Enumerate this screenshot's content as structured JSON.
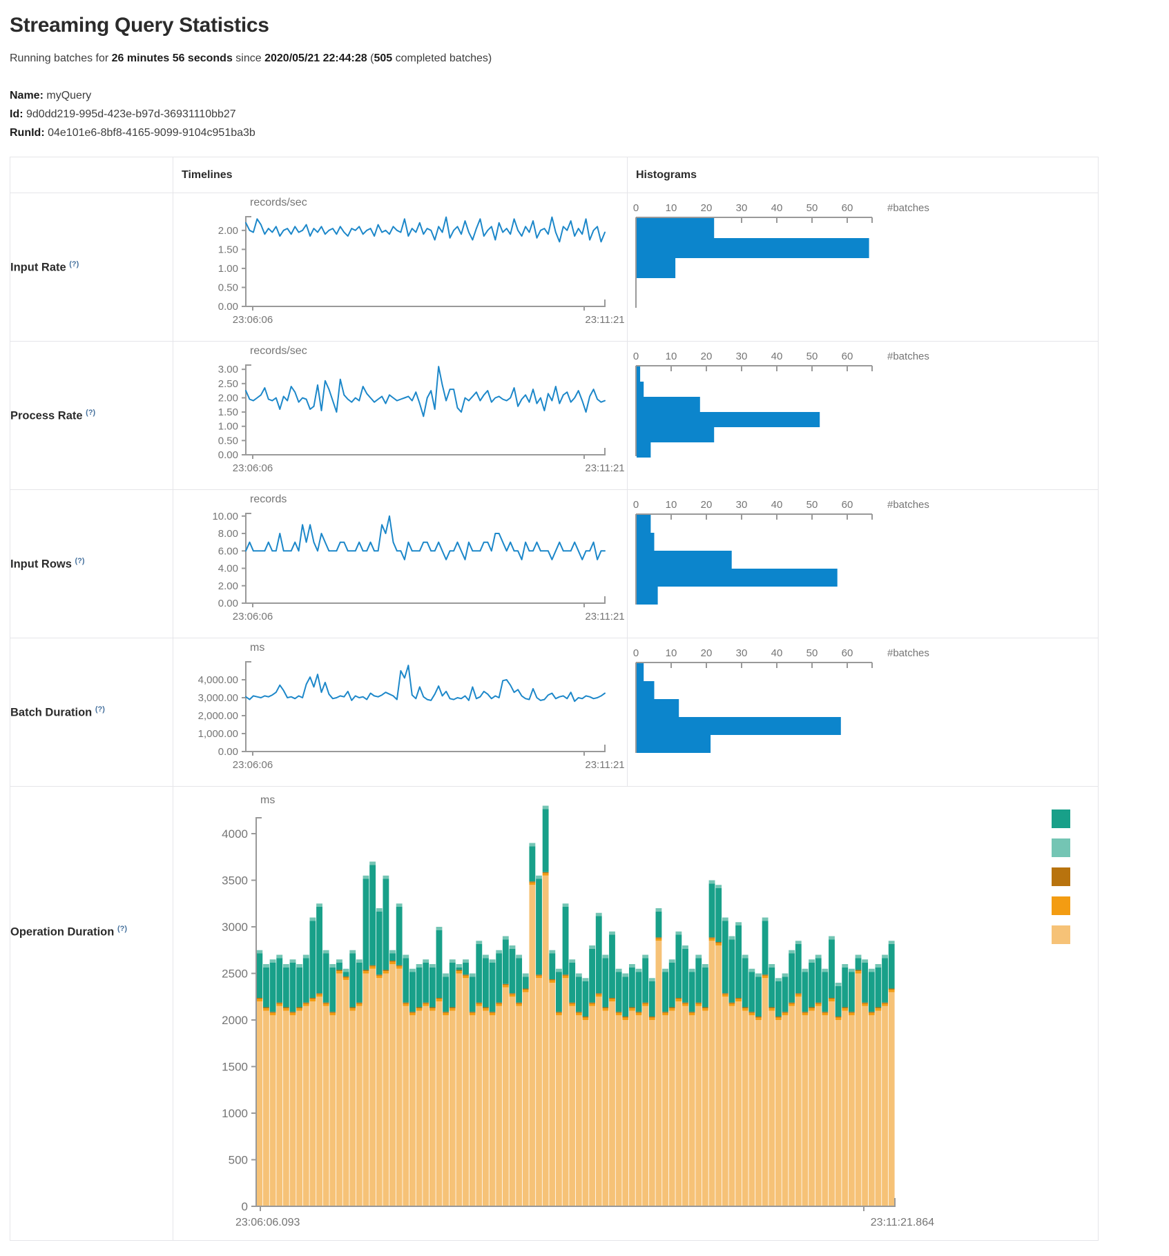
{
  "page": {
    "title": "Streaming Query Statistics",
    "subtitle": {
      "prefix": "Running batches for",
      "duration": "26 minutes 56 seconds",
      "mid": "since",
      "start_time": "2020/05/21 22:44:28",
      "open_paren": "(",
      "batch_count": "505",
      "suffix": "completed batches)"
    },
    "meta": {
      "name_label": "Name:",
      "name_value": "myQuery",
      "id_label": "Id:",
      "id_value": "9d0dd219-995d-423e-b97d-36931110bb27",
      "runid_label": "RunId:",
      "runid_value": "04e101e6-8bf8-4165-9099-9104c951ba3b"
    }
  },
  "table": {
    "header": {
      "timelines": "Timelines",
      "histograms": "Histograms"
    },
    "row_labels": [
      {
        "label": "Input Rate",
        "help": "(?)"
      },
      {
        "label": "Process Rate",
        "help": "(?)"
      },
      {
        "label": "Input Rows",
        "help": "(?)"
      },
      {
        "label": "Batch Duration",
        "help": "(?)"
      },
      {
        "label": "Operation Duration",
        "help": "(?)"
      }
    ]
  },
  "colors": {
    "line_blue": "#1c87c9",
    "hist_blue": "#0c85cc",
    "axis": "#999999",
    "tick_text": "#757575",
    "op_teal": "#18a089",
    "op_light_teal": "#74c5b4",
    "op_dark_orange": "#b8730e",
    "op_orange": "#f39c12",
    "op_tan": "#f6c277"
  },
  "chart_data": {
    "histogram_axis": {
      "ticks": [
        0,
        10,
        20,
        30,
        40,
        50,
        60
      ],
      "unit_label": "#batches",
      "max_value": 67
    },
    "rows": [
      {
        "name": "input-rate",
        "timeline": {
          "type": "line",
          "ylabel": "records/sec",
          "yticks": [
            "0.00",
            "0.50",
            "1.00",
            "1.50",
            "2.00"
          ],
          "ytick_values": [
            0,
            0.5,
            1,
            1.5,
            2
          ],
          "y_axis_top_value": 2.36,
          "x_start_label": "23:06:06",
          "x_end_label": "23:11:21",
          "values": [
            2.2,
            2.0,
            1.95,
            2.3,
            2.15,
            1.9,
            2.05,
            1.95,
            2.1,
            1.85,
            2.0,
            2.05,
            1.9,
            2.1,
            1.95,
            2.0,
            2.15,
            1.85,
            2.05,
            1.95,
            2.1,
            1.9,
            2.0,
            2.05,
            1.9,
            2.1,
            1.95,
            1.85,
            2.05,
            2.0,
            2.1,
            1.9,
            2.0,
            2.05,
            1.85,
            2.15,
            1.95,
            2.0,
            1.9,
            2.1,
            2.0,
            1.95,
            2.3,
            1.85,
            2.05,
            1.95,
            2.2,
            1.9,
            2.05,
            2.0,
            1.75,
            2.1,
            1.95,
            2.35,
            1.8,
            2.0,
            2.1,
            1.9,
            2.25,
            1.95,
            1.75,
            2.05,
            2.3,
            1.85,
            2.0,
            2.1,
            1.75,
            2.2,
            1.95,
            2.05,
            1.9,
            2.3,
            2.0,
            1.85,
            2.1,
            1.95,
            2.25,
            1.8,
            2.0,
            2.05,
            1.9,
            2.35,
            1.95,
            1.7,
            2.1,
            2.0,
            2.25,
            1.85,
            2.05,
            1.9,
            2.3,
            1.75,
            2.0,
            2.1,
            1.7,
            1.95
          ]
        },
        "histogram": {
          "type": "bar-horizontal",
          "values": [
            22,
            66,
            11
          ]
        }
      },
      {
        "name": "process-rate",
        "timeline": {
          "type": "line",
          "ylabel": "records/sec",
          "yticks": [
            "0.00",
            "0.50",
            "1.00",
            "1.50",
            "2.00",
            "2.50",
            "3.00"
          ],
          "ytick_values": [
            0,
            0.5,
            1,
            1.5,
            2,
            2.5,
            3
          ],
          "y_axis_top_value": 3.15,
          "x_start_label": "23:06:06",
          "x_end_label": "23:11:21",
          "values": [
            2.25,
            1.95,
            1.9,
            2.0,
            2.1,
            2.35,
            1.95,
            1.9,
            2.0,
            1.6,
            2.05,
            1.9,
            2.4,
            2.2,
            1.85,
            2.0,
            1.95,
            1.6,
            1.7,
            2.45,
            1.55,
            2.6,
            2.3,
            1.9,
            1.5,
            2.65,
            2.1,
            1.95,
            1.85,
            2.0,
            1.9,
            2.4,
            2.15,
            2.0,
            1.85,
            1.95,
            2.05,
            1.8,
            2.1,
            2.0,
            1.9,
            1.95,
            2.0,
            2.05,
            1.9,
            2.2,
            1.8,
            1.35,
            2.0,
            2.25,
            1.6,
            3.1,
            2.45,
            1.9,
            2.3,
            2.3,
            1.65,
            1.5,
            2.0,
            1.9,
            2.05,
            2.2,
            1.9,
            2.1,
            2.25,
            1.85,
            2.0,
            2.05,
            1.95,
            1.9,
            2.0,
            2.35,
            1.7,
            1.95,
            2.1,
            1.85,
            2.3,
            1.8,
            2.0,
            1.55,
            2.15,
            1.9,
            2.4,
            1.8,
            2.1,
            2.2,
            1.85,
            2.0,
            2.25,
            1.9,
            1.5,
            2.05,
            2.3,
            1.95,
            1.85,
            1.9
          ]
        },
        "histogram": {
          "type": "bar-horizontal",
          "values": [
            1,
            2,
            18,
            52,
            22,
            4
          ]
        }
      },
      {
        "name": "input-rows",
        "timeline": {
          "type": "line",
          "ylabel": "records",
          "yticks": [
            "0.00",
            "2.00",
            "4.00",
            "6.00",
            "8.00",
            "10.00"
          ],
          "ytick_values": [
            0,
            2,
            4,
            6,
            8,
            10
          ],
          "y_axis_top_value": 10.3,
          "x_start_label": "23:06:06",
          "x_end_label": "23:11:21",
          "values": [
            6,
            7,
            6,
            6,
            6,
            6,
            7,
            6,
            6,
            8,
            6,
            6,
            6,
            7,
            6,
            9,
            7,
            9,
            7,
            6,
            8,
            7,
            6,
            6,
            6,
            7,
            7,
            6,
            6,
            6,
            7,
            6,
            6,
            7,
            6,
            6,
            9,
            8,
            10,
            7,
            6,
            6,
            5,
            7,
            6,
            6,
            6,
            7,
            7,
            6,
            6,
            7,
            6,
            5,
            6,
            6,
            7,
            6,
            5,
            7,
            6,
            6,
            6,
            7,
            7,
            6,
            8,
            8,
            7,
            6,
            7,
            6,
            6,
            5,
            7,
            6,
            6,
            7,
            6,
            6,
            6,
            5,
            6,
            7,
            6,
            6,
            6,
            7,
            6,
            5,
            6,
            6,
            7,
            5,
            6,
            6
          ]
        },
        "histogram": {
          "type": "bar-horizontal",
          "values": [
            4,
            5,
            27,
            57,
            6
          ]
        }
      },
      {
        "name": "batch-duration",
        "timeline": {
          "type": "line",
          "ylabel": "ms",
          "yticks": [
            "0.00",
            "1,000.00",
            "2,000.00",
            "3,000.00",
            "4,000.00"
          ],
          "ytick_values": [
            0,
            1000,
            2000,
            3000,
            4000
          ],
          "y_axis_top_value": 5000,
          "x_start_label": "23:06:06",
          "x_end_label": "23:11:21",
          "values": [
            3050,
            2900,
            3100,
            3050,
            3000,
            3100,
            3050,
            3150,
            3300,
            3700,
            3400,
            3000,
            3050,
            2950,
            3100,
            3000,
            3750,
            4150,
            3600,
            4300,
            3300,
            3850,
            3200,
            2950,
            3000,
            3100,
            3050,
            3350,
            2850,
            3100,
            3000,
            3050,
            2900,
            3250,
            3100,
            3050,
            3150,
            3300,
            3200,
            3100,
            2900,
            4500,
            4100,
            4800,
            3150,
            2950,
            3600,
            3050,
            2900,
            2850,
            3200,
            3650,
            3100,
            3350,
            2950,
            2900,
            3000,
            2950,
            3100,
            2850,
            3600,
            2950,
            3050,
            3350,
            3200,
            2950,
            3100,
            3000,
            3950,
            4000,
            3700,
            3300,
            3450,
            3100,
            2950,
            2900,
            3500,
            3000,
            2850,
            2900,
            3150,
            3250,
            2950,
            3050,
            3100,
            2950,
            3300,
            2800,
            3000,
            2950,
            3100,
            3050,
            2950,
            3000,
            3100,
            3250
          ]
        },
        "histogram": {
          "type": "bar-horizontal",
          "values": [
            2,
            5,
            12,
            58,
            21
          ]
        }
      }
    ],
    "operation_duration": {
      "type": "stacked-bar",
      "ylabel": "ms",
      "yticks": [
        0,
        500,
        1000,
        1500,
        2000,
        2500,
        3000,
        3500,
        4000
      ],
      "x_start_label": "23:06:06.093",
      "x_end_label": "23:11:21.864",
      "legend_colors": [
        "op_teal",
        "op_light_teal",
        "op_dark_orange",
        "op_orange",
        "op_tan"
      ],
      "stack_order": [
        "tan",
        "orange",
        "dark_orange",
        "teal",
        "light_teal"
      ],
      "sliver_values": {
        "orange": 25,
        "dark_orange": 12,
        "light_teal": 35
      },
      "totals": [
        2750,
        2600,
        2650,
        2700,
        2600,
        2650,
        2600,
        2700,
        3100,
        3250,
        2750,
        2600,
        2650,
        2550,
        2750,
        2650,
        3550,
        3700,
        3200,
        3550,
        2750,
        3250,
        2700,
        2550,
        2600,
        2650,
        2600,
        3000,
        2500,
        2650,
        2600,
        2650,
        2500,
        2850,
        2700,
        2650,
        2750,
        2900,
        2800,
        2700,
        2500,
        3900,
        3550,
        4300,
        2750,
        2550,
        3250,
        2650,
        2500,
        2450,
        2800,
        3150,
        2700,
        2950,
        2550,
        2500,
        2600,
        2550,
        2700,
        2450,
        3200,
        2550,
        2650,
        2950,
        2800,
        2550,
        2700,
        2600,
        3500,
        3450,
        3100,
        2900,
        3050,
        2700,
        2550,
        2500,
        3100,
        2600,
        2450,
        2500,
        2750,
        2850,
        2550,
        2650,
        2700,
        2550,
        2900,
        2400,
        2600,
        2550,
        2700,
        2650,
        2550,
        2600,
        2700,
        2850
      ],
      "base_values": [
        2200,
        2100,
        2050,
        2150,
        2100,
        2050,
        2100,
        2150,
        2200,
        2250,
        2150,
        2050,
        2500,
        2430,
        2100,
        2150,
        2500,
        2550,
        2450,
        2500,
        2600,
        2550,
        2150,
        2050,
        2100,
        2150,
        2100,
        2200,
        2050,
        2100,
        2500,
        2450,
        2050,
        2150,
        2100,
        2050,
        2150,
        2350,
        2250,
        2150,
        2300,
        3450,
        2450,
        3550,
        2400,
        2050,
        2450,
        2150,
        2050,
        2000,
        2150,
        2250,
        2100,
        2200,
        2050,
        2000,
        2100,
        2050,
        2150,
        2000,
        2850,
        2050,
        2100,
        2200,
        2150,
        2050,
        2150,
        2100,
        2850,
        2800,
        2250,
        2150,
        2200,
        2100,
        2050,
        2000,
        2450,
        2100,
        2000,
        2050,
        2150,
        2250,
        2050,
        2100,
        2150,
        2050,
        2200,
        2000,
        2100,
        2050,
        2500,
        2150,
        2050,
        2100,
        2150,
        2300
      ]
    }
  }
}
